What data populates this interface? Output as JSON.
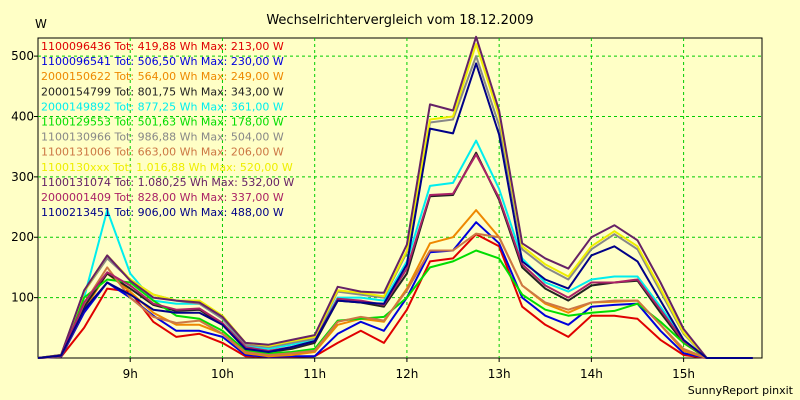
{
  "chart_data": {
    "type": "line",
    "title": "Wechselrichtervergleich vom 18.12.2009",
    "ylabel": "W",
    "footer": "SunnyReport pinxit",
    "ylim": [
      0,
      530
    ],
    "xlim": [
      8.0,
      15.85
    ],
    "grid": true,
    "legend_position": "top-left",
    "yticks": [
      100,
      200,
      300,
      400,
      500
    ],
    "xticks": [
      {
        "v": 9.0,
        "label": "9h"
      },
      {
        "v": 10.0,
        "label": "10h"
      },
      {
        "v": 11.0,
        "label": "11h"
      },
      {
        "v": 12.0,
        "label": "12h"
      },
      {
        "v": 13.0,
        "label": "13h"
      },
      {
        "v": 14.0,
        "label": "14h"
      },
      {
        "v": 15.0,
        "label": "15h"
      }
    ],
    "x": [
      8.0,
      8.25,
      8.5,
      8.75,
      9.0,
      9.25,
      9.5,
      9.75,
      10.0,
      10.25,
      10.5,
      10.75,
      11.0,
      11.25,
      11.5,
      11.75,
      12.0,
      12.25,
      12.5,
      12.75,
      13.0,
      13.25,
      13.5,
      13.75,
      14.0,
      14.25,
      14.5,
      14.75,
      15.0,
      15.25,
      15.5,
      15.75
    ],
    "series": [
      {
        "name": "1100096436",
        "text": "1100096436 Tot: 419,88 Wh Max: 213,00 W",
        "color": "#e00000",
        "values": [
          0,
          2,
          50,
          115,
          110,
          60,
          35,
          40,
          25,
          3,
          2,
          2,
          3,
          25,
          45,
          25,
          80,
          160,
          165,
          205,
          185,
          85,
          55,
          35,
          70,
          70,
          65,
          30,
          5,
          0,
          0,
          0
        ]
      },
      {
        "name": "1100096541",
        "text": "1100096541 Tot: 506,50 Wh Max: 230,00 W",
        "color": "#0000dd",
        "values": [
          0,
          2,
          75,
          125,
          100,
          70,
          45,
          45,
          35,
          5,
          2,
          3,
          3,
          40,
          60,
          45,
          100,
          175,
          178,
          225,
          190,
          100,
          70,
          55,
          85,
          88,
          90,
          45,
          8,
          0,
          0,
          0
        ]
      },
      {
        "name": "2000150622",
        "text": "2000150622 Tot: 564,00 Wh Max: 249,00 W",
        "color": "#ee8800",
        "values": [
          0,
          3,
          80,
          140,
          110,
          75,
          55,
          55,
          40,
          8,
          3,
          5,
          10,
          55,
          65,
          60,
          115,
          190,
          200,
          245,
          200,
          120,
          90,
          75,
          92,
          93,
          95,
          55,
          12,
          0,
          0,
          0
        ]
      },
      {
        "name": "2000154799",
        "text": "2000154799 Tot: 801,75 Wh Max: 343,00 W",
        "color": "#222222",
        "values": [
          0,
          4,
          85,
          140,
          115,
          88,
          78,
          80,
          55,
          15,
          10,
          15,
          25,
          95,
          92,
          85,
          140,
          268,
          270,
          340,
          262,
          150,
          115,
          95,
          120,
          125,
          128,
          75,
          25,
          0,
          0,
          0
        ]
      },
      {
        "name": "2000149892",
        "text": "2000149892 Tot: 877,25 Wh Max: 361,00 W",
        "color": "#00eeee",
        "values": [
          0,
          5,
          100,
          245,
          140,
          95,
          90,
          90,
          65,
          20,
          15,
          22,
          30,
          100,
          100,
          95,
          160,
          285,
          290,
          360,
          280,
          165,
          125,
          110,
          130,
          135,
          135,
          85,
          30,
          0,
          0,
          0
        ]
      },
      {
        "name": "1100129553",
        "text": "1100129553 Tot: 501,63 Wh Max: 178,00 W",
        "color": "#00dd00",
        "values": [
          0,
          5,
          100,
          130,
          125,
          95,
          70,
          65,
          45,
          12,
          8,
          10,
          15,
          62,
          65,
          68,
          100,
          150,
          160,
          178,
          165,
          105,
          80,
          70,
          75,
          78,
          90,
          60,
          25,
          0,
          0,
          0
        ]
      },
      {
        "name": "1100130966",
        "text": "1100130966 Tot: 986,88 Wh Max: 504,00 W",
        "color": "#888888",
        "values": [
          0,
          5,
          110,
          165,
          130,
          105,
          95,
          90,
          65,
          22,
          18,
          25,
          32,
          110,
          105,
          100,
          175,
          390,
          395,
          500,
          385,
          180,
          150,
          130,
          180,
          205,
          180,
          110,
          40,
          0,
          0,
          0
        ]
      },
      {
        "name": "1100131006",
        "text": "1100131006 Tot: 663,00 Wh Max: 206,00 W",
        "color": "#cc7744",
        "values": [
          0,
          4,
          90,
          150,
          100,
          68,
          58,
          62,
          40,
          10,
          5,
          8,
          12,
          60,
          68,
          62,
          112,
          178,
          178,
          206,
          200,
          120,
          92,
          80,
          92,
          95,
          95,
          55,
          15,
          0,
          0,
          0
        ]
      },
      {
        "name": "1100130xxx",
        "text": "1100130xxx Tot: 1.016,88 Wh Max: 520,00 W",
        "color": "#eeee00",
        "values": [
          0,
          5,
          110,
          170,
          130,
          105,
          95,
          95,
          70,
          25,
          20,
          28,
          35,
          112,
          108,
          102,
          178,
          395,
          400,
          520,
          400,
          185,
          155,
          135,
          185,
          210,
          185,
          115,
          42,
          0,
          0,
          0
        ]
      },
      {
        "name": "1100131074",
        "text": "1100131074 Tot: 1.080,25 Wh Max: 532,00 W",
        "color": "#662266",
        "values": [
          0,
          5,
          112,
          170,
          128,
          100,
          95,
          92,
          68,
          25,
          22,
          30,
          38,
          118,
          110,
          108,
          188,
          420,
          410,
          532,
          410,
          190,
          165,
          148,
          200,
          220,
          195,
          125,
          48,
          0,
          0,
          0
        ]
      },
      {
        "name": "2000001409",
        "text": "2000001409 Tot: 828,00 Wh Max: 337,00 W",
        "color": "#aa2266",
        "values": [
          0,
          4,
          92,
          142,
          120,
          90,
          80,
          82,
          58,
          18,
          12,
          18,
          28,
          98,
          95,
          88,
          148,
          270,
          272,
          337,
          265,
          155,
          120,
          100,
          125,
          125,
          130,
          80,
          28,
          0,
          0,
          0
        ]
      },
      {
        "name": "1100213451",
        "text": "1100213451 Tot: 906,00 Wh Max: 488,00 W",
        "color": "#000088",
        "values": [
          0,
          4,
          80,
          125,
          105,
          80,
          75,
          75,
          55,
          15,
          10,
          18,
          28,
          95,
          92,
          90,
          155,
          380,
          372,
          488,
          370,
          160,
          130,
          115,
          170,
          185,
          160,
          95,
          30,
          0,
          0,
          0
        ]
      }
    ]
  }
}
